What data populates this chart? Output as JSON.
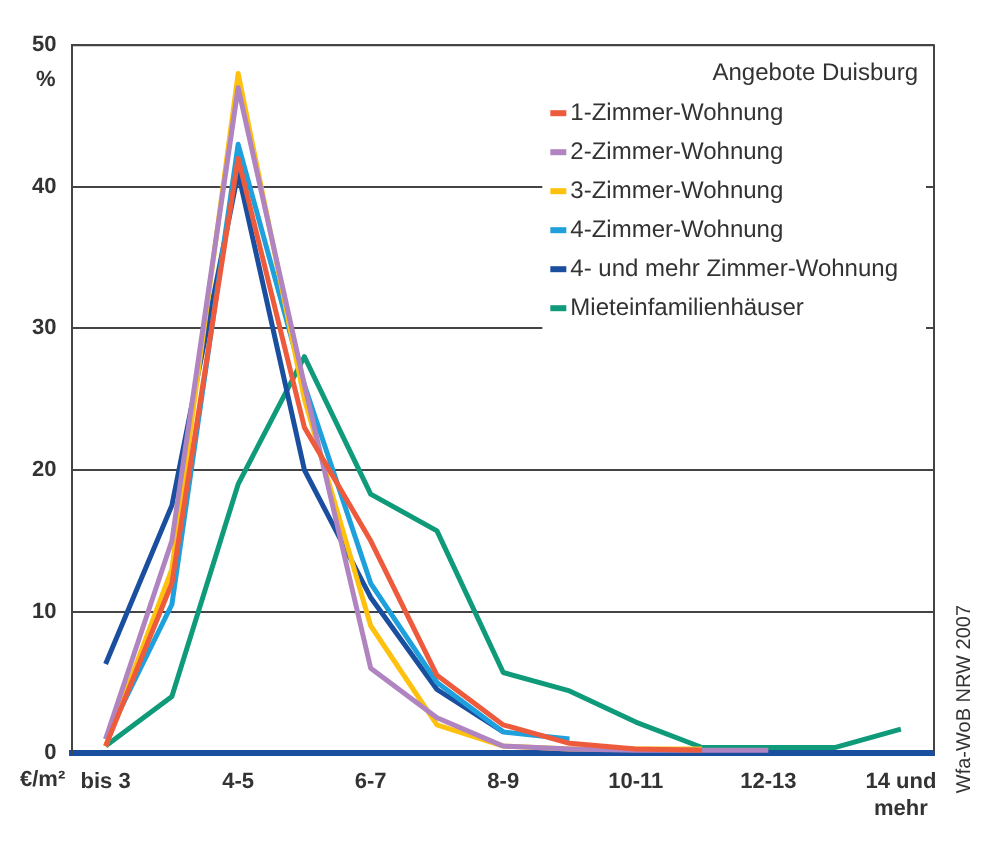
{
  "chart_data": {
    "type": "line",
    "xlabel": "€/m²",
    "ylabel": "%",
    "legend_title": "Angebote Duisburg",
    "categories": [
      "bis 3",
      null,
      "4-5",
      null,
      "6-7",
      null,
      "8-9",
      null,
      "10-11",
      null,
      "12-13",
      null,
      "14 und mehr"
    ],
    "series": [
      {
        "name": "1-Zimmer-Wohnung",
        "color": "#ee5a3c",
        "values": [
          0.5,
          12,
          42,
          23,
          15,
          5.5,
          2,
          0.7,
          0.3,
          0.2,
          null,
          null,
          null
        ]
      },
      {
        "name": "2-Zimmer-Wohnung",
        "color": "#b084c0",
        "values": [
          1,
          15,
          47,
          26,
          6,
          2.5,
          0.5,
          0.3,
          0.2,
          0.2,
          0.2,
          null,
          null
        ]
      },
      {
        "name": "3-Zimmer-Wohnung",
        "color": "#fec20e",
        "values": [
          0.5,
          13,
          48,
          25,
          9,
          2,
          0.5,
          0.3,
          0.3,
          0.3,
          null,
          null,
          null
        ]
      },
      {
        "name": "4-Zimmer-Wohnung",
        "color": "#1ea0dc",
        "values": [
          1,
          10.5,
          43,
          26,
          12,
          5,
          1.5,
          1,
          null,
          null,
          null,
          null,
          null
        ]
      },
      {
        "name": "4- und mehr Zimmer-Wohnung",
        "color": "#1a4fa0",
        "values": [
          6.3,
          17.5,
          41,
          20,
          11,
          4.5,
          1.5,
          null,
          null,
          null,
          null,
          null,
          null
        ]
      },
      {
        "name": "Mieteinfamilienhäuser",
        "color": "#0f9a7a",
        "values": [
          0.5,
          4,
          19,
          28,
          18.3,
          15.7,
          5.7,
          4.4,
          2.2,
          0.4,
          0.4,
          0.4,
          1.7
        ]
      }
    ],
    "ylim": [
      0,
      50
    ],
    "yticks": [
      0,
      10,
      20,
      30,
      40,
      50
    ],
    "grid": "y",
    "legend": "top right",
    "marker": "none",
    "line_style": "solid",
    "annotations": [
      "Wfa-WoB NRW 2007"
    ]
  }
}
